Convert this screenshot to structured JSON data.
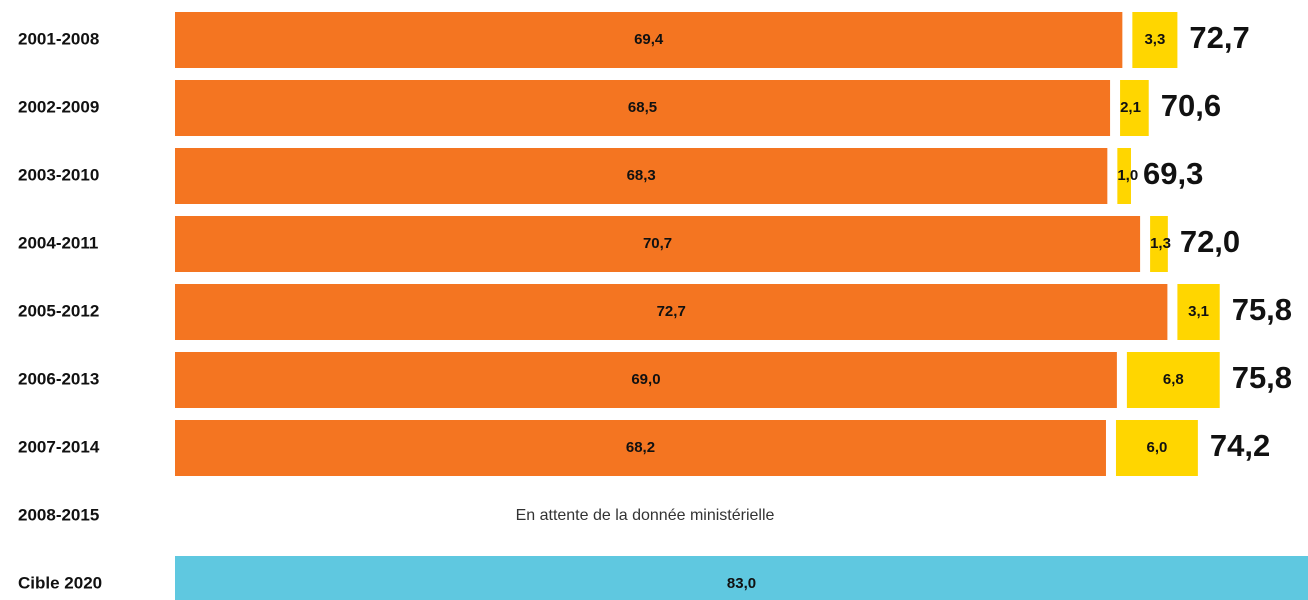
{
  "chart_data": {
    "type": "stacked-hbar",
    "categories": [
      "2001-2008",
      "2002-2009",
      "2003-2010",
      "2004-2011",
      "2005-2012",
      "2006-2013",
      "2007-2014",
      "2008-2015",
      "Cible 2020"
    ],
    "xlim": [
      0,
      83
    ],
    "series": [
      {
        "color": "#f47521",
        "values": [
          69.4,
          68.5,
          68.3,
          70.7,
          72.7,
          69.0,
          68.2,
          null,
          null
        ],
        "value_labels": [
          "69,4",
          "68,5",
          "68,3",
          "70,7",
          "72,7",
          "69,0",
          "68,2",
          null,
          null
        ]
      },
      {
        "color": "#ffd600",
        "values": [
          3.3,
          2.1,
          1.0,
          1.3,
          3.1,
          6.8,
          6.0,
          null,
          null
        ],
        "value_labels": [
          "3,3",
          "2,1",
          "1,0",
          "1,3",
          "3,1",
          "6,8",
          "6,0",
          null,
          null
        ]
      },
      {
        "color": "#5fc8e0",
        "values": [
          null,
          null,
          null,
          null,
          null,
          null,
          null,
          null,
          83.0
        ],
        "value_labels": [
          null,
          null,
          null,
          null,
          null,
          null,
          null,
          null,
          "83,0"
        ]
      }
    ],
    "totals": {
      "values": [
        72.7,
        70.6,
        69.3,
        72.0,
        75.8,
        75.8,
        74.2,
        null,
        null
      ],
      "value_labels": [
        "72,7",
        "70,6",
        "69,3",
        "72,0",
        "75,8",
        "75,8",
        "74,2",
        null,
        null
      ]
    },
    "annotation": "En attente de la donnée ministérielle"
  }
}
